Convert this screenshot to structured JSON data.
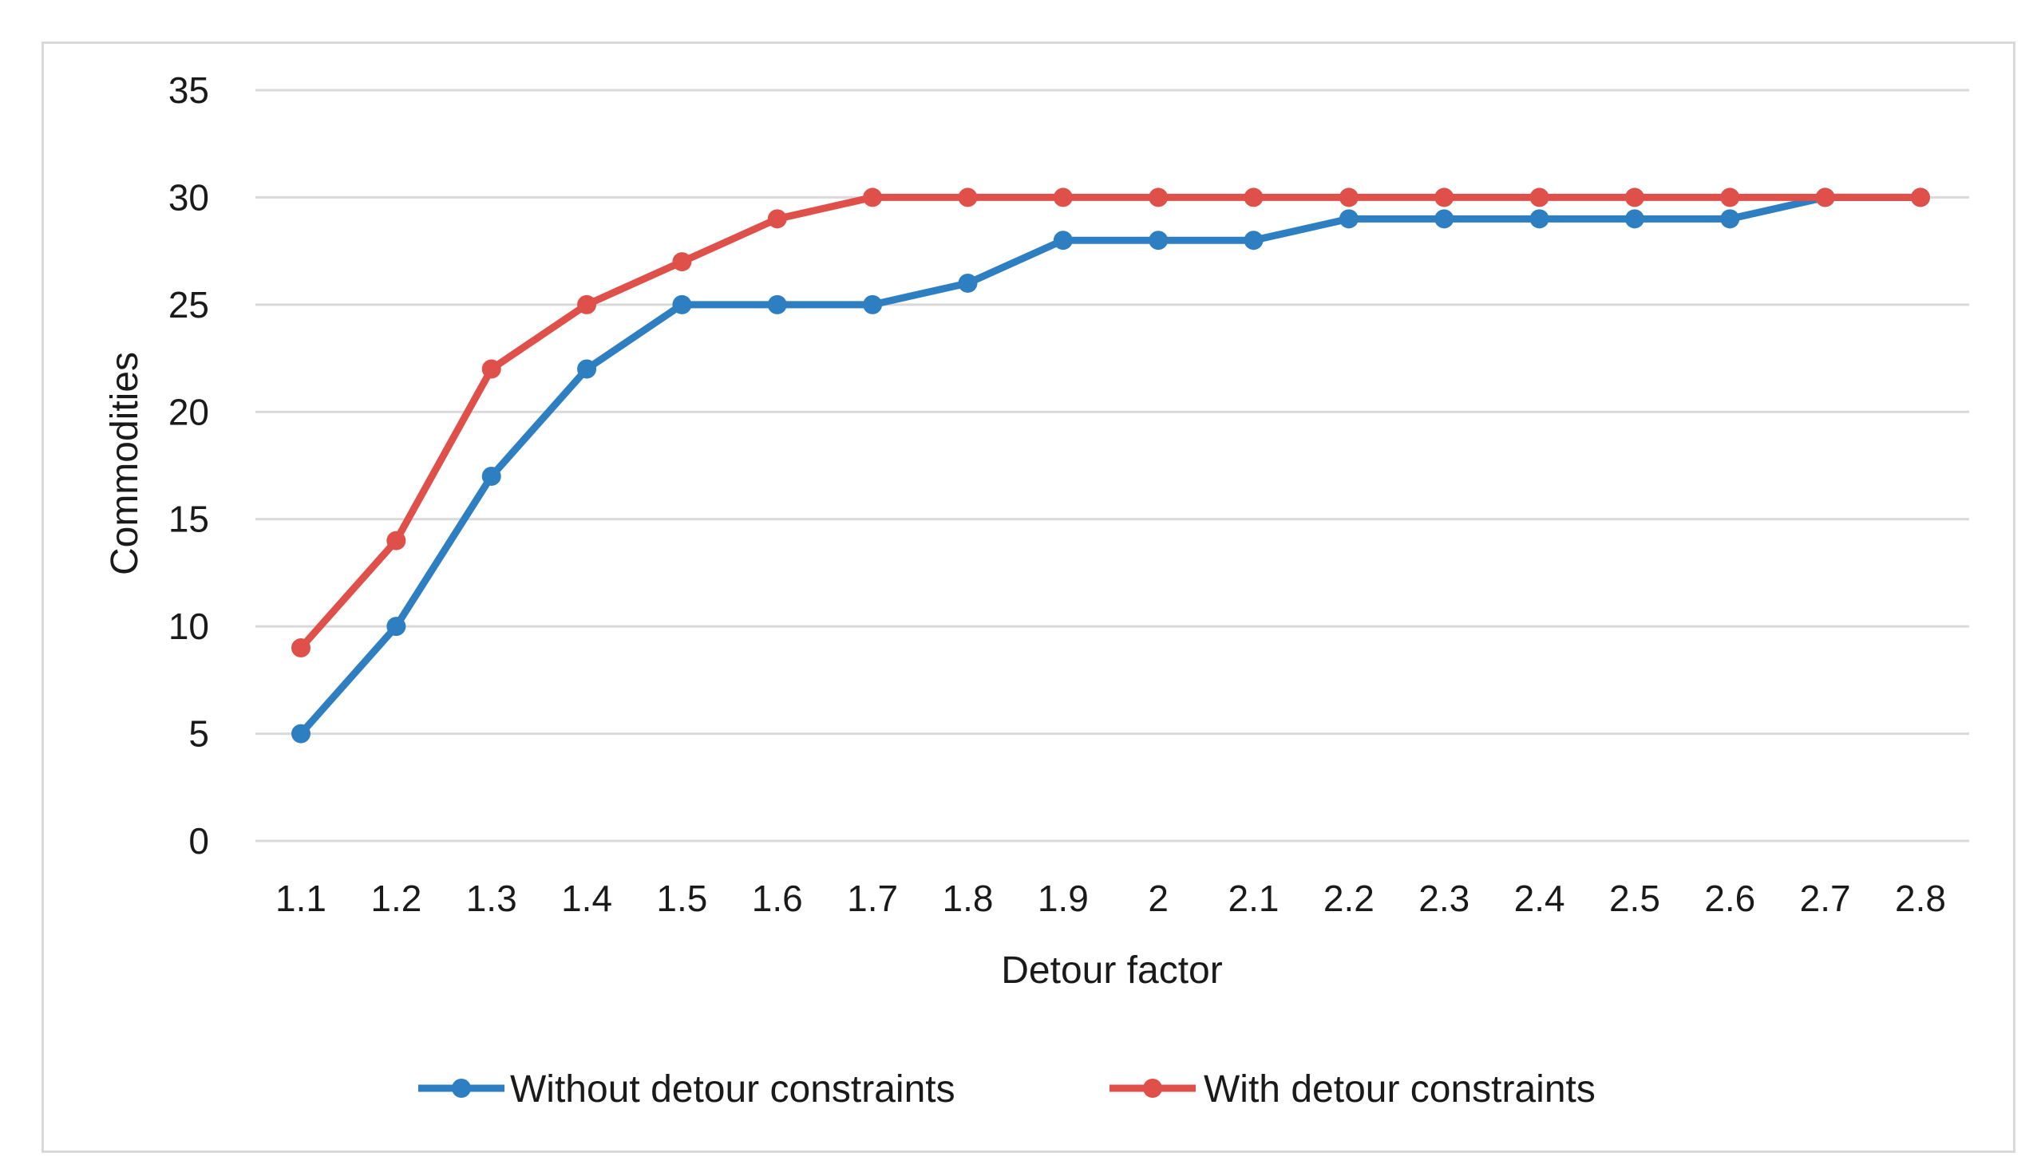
{
  "chart_data": {
    "type": "line",
    "title": "",
    "xlabel": "Detour factor",
    "ylabel": "Commodities",
    "categories": [
      "1.1",
      "1.2",
      "1.3",
      "1.4",
      "1.5",
      "1.6",
      "1.7",
      "1.8",
      "1.9",
      "2",
      "2.1",
      "2.2",
      "2.3",
      "2.4",
      "2.5",
      "2.6",
      "2.7",
      "2.8"
    ],
    "ylim": [
      0,
      35
    ],
    "yticks": [
      0,
      5,
      10,
      15,
      20,
      25,
      30,
      35
    ],
    "grid": true,
    "legend_position": "bottom",
    "series": [
      {
        "name": "Without detour constraints",
        "color": "#2e7fc1",
        "values": [
          5,
          10,
          17,
          22,
          25,
          25,
          25,
          26,
          28,
          28,
          28,
          29,
          29,
          29,
          29,
          29,
          30,
          30
        ]
      },
      {
        "name": "With detour constraints",
        "color": "#e0504a",
        "values": [
          9,
          14,
          22,
          25,
          27,
          29,
          30,
          30,
          30,
          30,
          30,
          30,
          30,
          30,
          30,
          30,
          30,
          30
        ]
      }
    ]
  }
}
